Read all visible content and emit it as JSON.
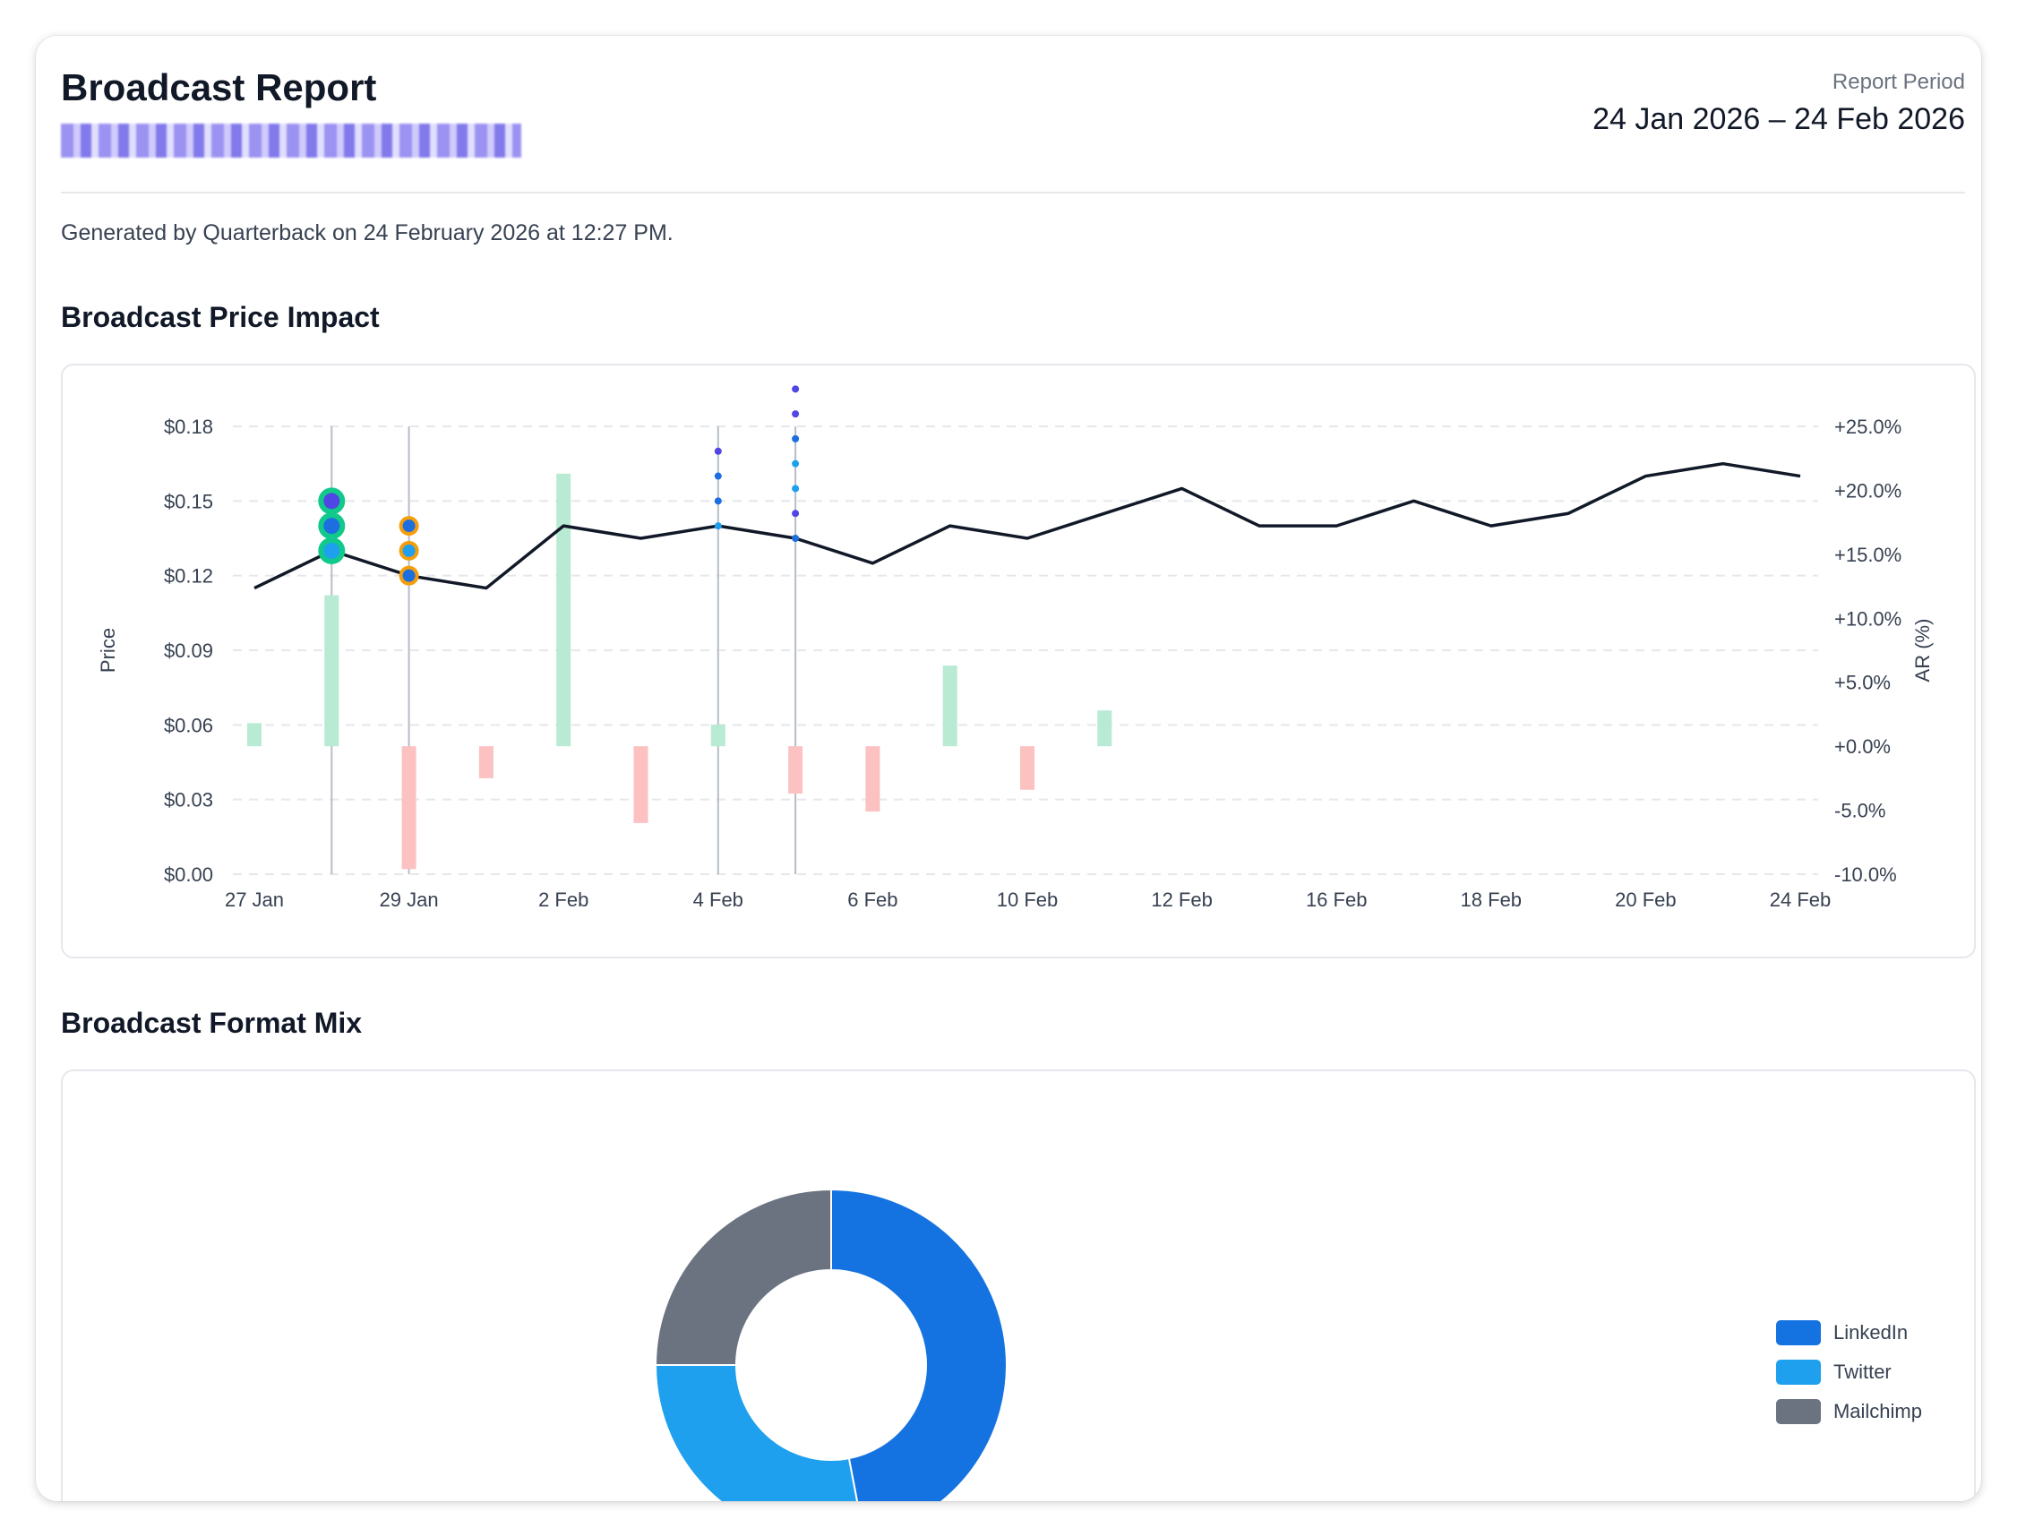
{
  "header": {
    "title": "Broadcast Report",
    "period_label": "Report Period",
    "period_value": "24 Jan 2026 – 24 Feb 2026",
    "generated": "Generated by Quarterback on 24 February 2026 at 12:27 PM."
  },
  "sections": {
    "impact_title": "Broadcast Price Impact",
    "mix_title": "Broadcast Format Mix"
  },
  "colors": {
    "price_line": "#111827",
    "ar_positive": "#b9ead3",
    "ar_negative": "#fcc1c1",
    "linkedin": "#1473e0",
    "twitter": "#1ea0ef",
    "mailchimp": "#6b7280",
    "marker_green": "#10c98a",
    "marker_orange": "#f59e0b"
  },
  "chart_data": [
    {
      "type": "line",
      "title": "",
      "ylabel": "Price",
      "y2label": "AR (%)",
      "ylim": [
        0,
        0.18
      ],
      "y2lim": [
        -10,
        25
      ],
      "yticks": [
        "$0.00",
        "$0.03",
        "$0.06",
        "$0.09",
        "$0.12",
        "$0.15",
        "$0.18"
      ],
      "y2ticks": [
        "-10.0%",
        "-5.0%",
        "+0.0%",
        "+5.0%",
        "+10.0%",
        "+15.0%",
        "+20.0%",
        "+25.0%"
      ],
      "x_tick_labels": [
        "27 Jan",
        "29 Jan",
        "2 Feb",
        "4 Feb",
        "6 Feb",
        "10 Feb",
        "12 Feb",
        "16 Feb",
        "18 Feb",
        "20 Feb",
        "24 Feb"
      ],
      "grid": true,
      "price_series": {
        "name": "Price",
        "x": [
          "27 Jan",
          "28 Jan",
          "29 Jan",
          "30 Jan",
          "2 Feb",
          "3 Feb",
          "4 Feb",
          "5 Feb",
          "6 Feb",
          "9 Feb",
          "10 Feb",
          "11 Feb",
          "12 Feb",
          "13 Feb",
          "16 Feb",
          "17 Feb",
          "18 Feb",
          "19 Feb",
          "20 Feb",
          "23 Feb",
          "24 Feb"
        ],
        "values": [
          0.115,
          0.13,
          0.12,
          0.115,
          0.14,
          0.135,
          0.14,
          0.135,
          0.125,
          0.14,
          0.135,
          0.145,
          0.155,
          0.14,
          0.14,
          0.15,
          0.14,
          0.145,
          0.16,
          0.165,
          0.16
        ]
      },
      "ar_series": {
        "name": "AR (%)",
        "x": [
          "27 Jan",
          "28 Jan",
          "29 Jan",
          "30 Jan",
          "2 Feb",
          "3 Feb",
          "4 Feb",
          "5 Feb",
          "6 Feb",
          "9 Feb",
          "10 Feb",
          "11 Feb"
        ],
        "values": [
          1.8,
          11.8,
          -9.6,
          -2.5,
          21.3,
          -6.0,
          1.7,
          -3.7,
          -5.1,
          6.3,
          -3.4,
          2.8
        ]
      },
      "broadcast_markers": [
        {
          "x": "28 Jan",
          "group": "green",
          "values": [
            0.15,
            0.14,
            0.13
          ],
          "fills": [
            "#4f46e5",
            "#1d6fe0",
            "#1ea0ef"
          ]
        },
        {
          "x": "29 Jan",
          "group": "orange",
          "values": [
            0.14,
            0.13,
            0.12
          ],
          "fills": [
            "#1d6fe0",
            "#1ea0ef",
            "#1d6fe0"
          ]
        },
        {
          "x": "4 Feb",
          "group": "dots",
          "values": [
            0.17,
            0.16,
            0.15,
            0.14
          ],
          "fills": [
            "#4f46e5",
            "#1d6fe0",
            "#1d6fe0",
            "#1ea0ef"
          ]
        },
        {
          "x": "5 Feb",
          "group": "dots",
          "values": [
            0.195,
            0.185,
            0.175,
            0.165,
            0.155,
            0.145,
            0.135
          ],
          "fills": [
            "#4f46e5",
            "#4f46e5",
            "#1d6fe0",
            "#1ea0ef",
            "#1ea0ef",
            "#4f46e5",
            "#1d6fe0"
          ]
        }
      ]
    },
    {
      "type": "pie",
      "title": "",
      "donut": true,
      "labels": [
        "LinkedIn",
        "Twitter",
        "Mailchimp"
      ],
      "values": [
        47,
        28,
        25
      ],
      "legend": "right"
    }
  ]
}
